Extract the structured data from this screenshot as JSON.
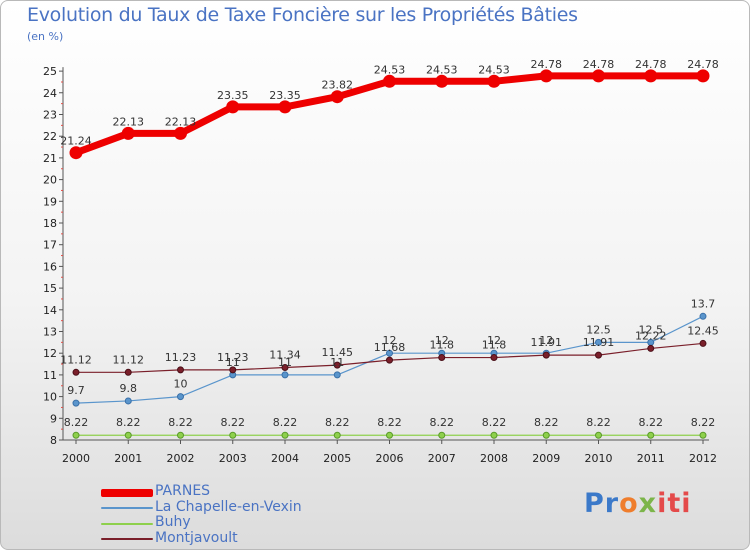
{
  "chart_data": {
    "type": "line",
    "title": "Evolution du Taux de Taxe Foncière sur les Propriétés Bâties",
    "subtitle": "(en %)",
    "x": [
      "2000",
      "2001",
      "2002",
      "2003",
      "2004",
      "2005",
      "2006",
      "2007",
      "2008",
      "2009",
      "2010",
      "2011",
      "2012"
    ],
    "ylim": [
      8,
      25
    ],
    "yticks": [
      "8",
      "9",
      "10",
      "11",
      "12",
      "13",
      "14",
      "15",
      "16",
      "17",
      "18",
      "19",
      "20",
      "21",
      "22",
      "23",
      "24",
      "25"
    ],
    "grid": false,
    "legend_position": "bottom-left",
    "series": [
      {
        "name": "PARNES",
        "color": "#ee0000",
        "values": [
          21.24,
          22.13,
          22.13,
          23.35,
          23.35,
          23.82,
          24.53,
          24.53,
          24.53,
          24.78,
          24.78,
          24.78,
          24.78
        ],
        "labels": [
          "21.24",
          "22.13",
          "22.13",
          "23.35",
          "23.35",
          "23.82",
          "24.53",
          "24.53",
          "24.53",
          "24.78",
          "24.78",
          "24.78",
          "24.78"
        ]
      },
      {
        "name": "La Chapelle-en-Vexin",
        "color": "#5a95cc",
        "values": [
          9.7,
          9.8,
          10,
          11,
          11,
          11,
          12,
          12,
          12,
          12,
          12.5,
          12.5,
          13.7
        ],
        "labels": [
          "9.7",
          "9.8",
          "10",
          "11",
          "11",
          "11",
          "12",
          "12",
          "12",
          "12",
          "12.5",
          "12.5",
          "13.7"
        ]
      },
      {
        "name": "Buhy",
        "color": "#8ed04c",
        "values": [
          8.22,
          8.22,
          8.22,
          8.22,
          8.22,
          8.22,
          8.22,
          8.22,
          8.22,
          8.22,
          8.22,
          8.22,
          8.22
        ],
        "labels": [
          "8.22",
          "8.22",
          "8.22",
          "8.22",
          "8.22",
          "8.22",
          "8.22",
          "8.22",
          "8.22",
          "8.22",
          "8.22",
          "8.22",
          "8.22"
        ]
      },
      {
        "name": "Montjavoult",
        "color": "#7a1f2a",
        "values": [
          11.12,
          11.12,
          11.23,
          11.23,
          11.34,
          11.45,
          11.68,
          11.8,
          11.8,
          11.91,
          11.91,
          12.22,
          12.45
        ],
        "labels": [
          "11.12",
          "11.12",
          "11.23",
          "11.23",
          "11.34",
          "11.45",
          "11.68",
          "11.8",
          "11.8",
          "11.91",
          "11.91",
          "12.22",
          "12.45"
        ]
      }
    ]
  },
  "branding": {
    "logo_parts": [
      "Pr",
      "o",
      "x",
      "iti"
    ]
  }
}
